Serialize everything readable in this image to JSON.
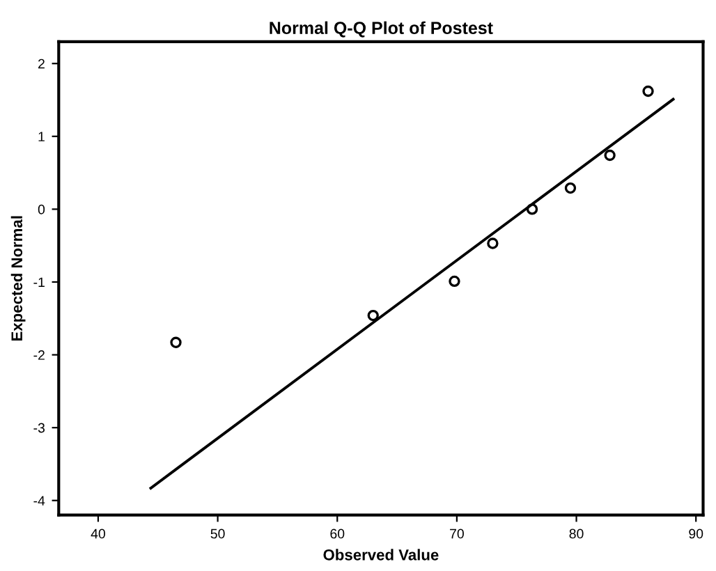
{
  "chart_data": {
    "type": "scatter",
    "title": "Normal Q-Q Plot of Postest",
    "xlabel": "Observed Value",
    "ylabel": "Expected Normal",
    "series": [
      {
        "color": "#000000",
        "marker": "circle",
        "x": [
          46.5,
          63.0,
          69.8,
          73.0,
          76.3,
          79.5,
          82.8,
          86.0
        ],
        "values": [
          -1.83,
          -1.46,
          -0.99,
          -0.47,
          0.0,
          0.29,
          0.74,
          1.62
        ]
      },
      {
        "type": "line",
        "color": "#000000",
        "marker": "none",
        "line_style": "solid",
        "x": [
          44.4,
          88.1
        ],
        "values": [
          -3.83,
          1.51
        ]
      }
    ],
    "xlim": [
      36.7,
      90.6
    ],
    "xticks": [
      40,
      50,
      60,
      70,
      80,
      90
    ],
    "ylim": [
      -4.2,
      2.3
    ],
    "yticks": [
      -4,
      -3,
      -2,
      -1,
      0,
      1,
      2
    ],
    "grid": false,
    "legend": false
  }
}
